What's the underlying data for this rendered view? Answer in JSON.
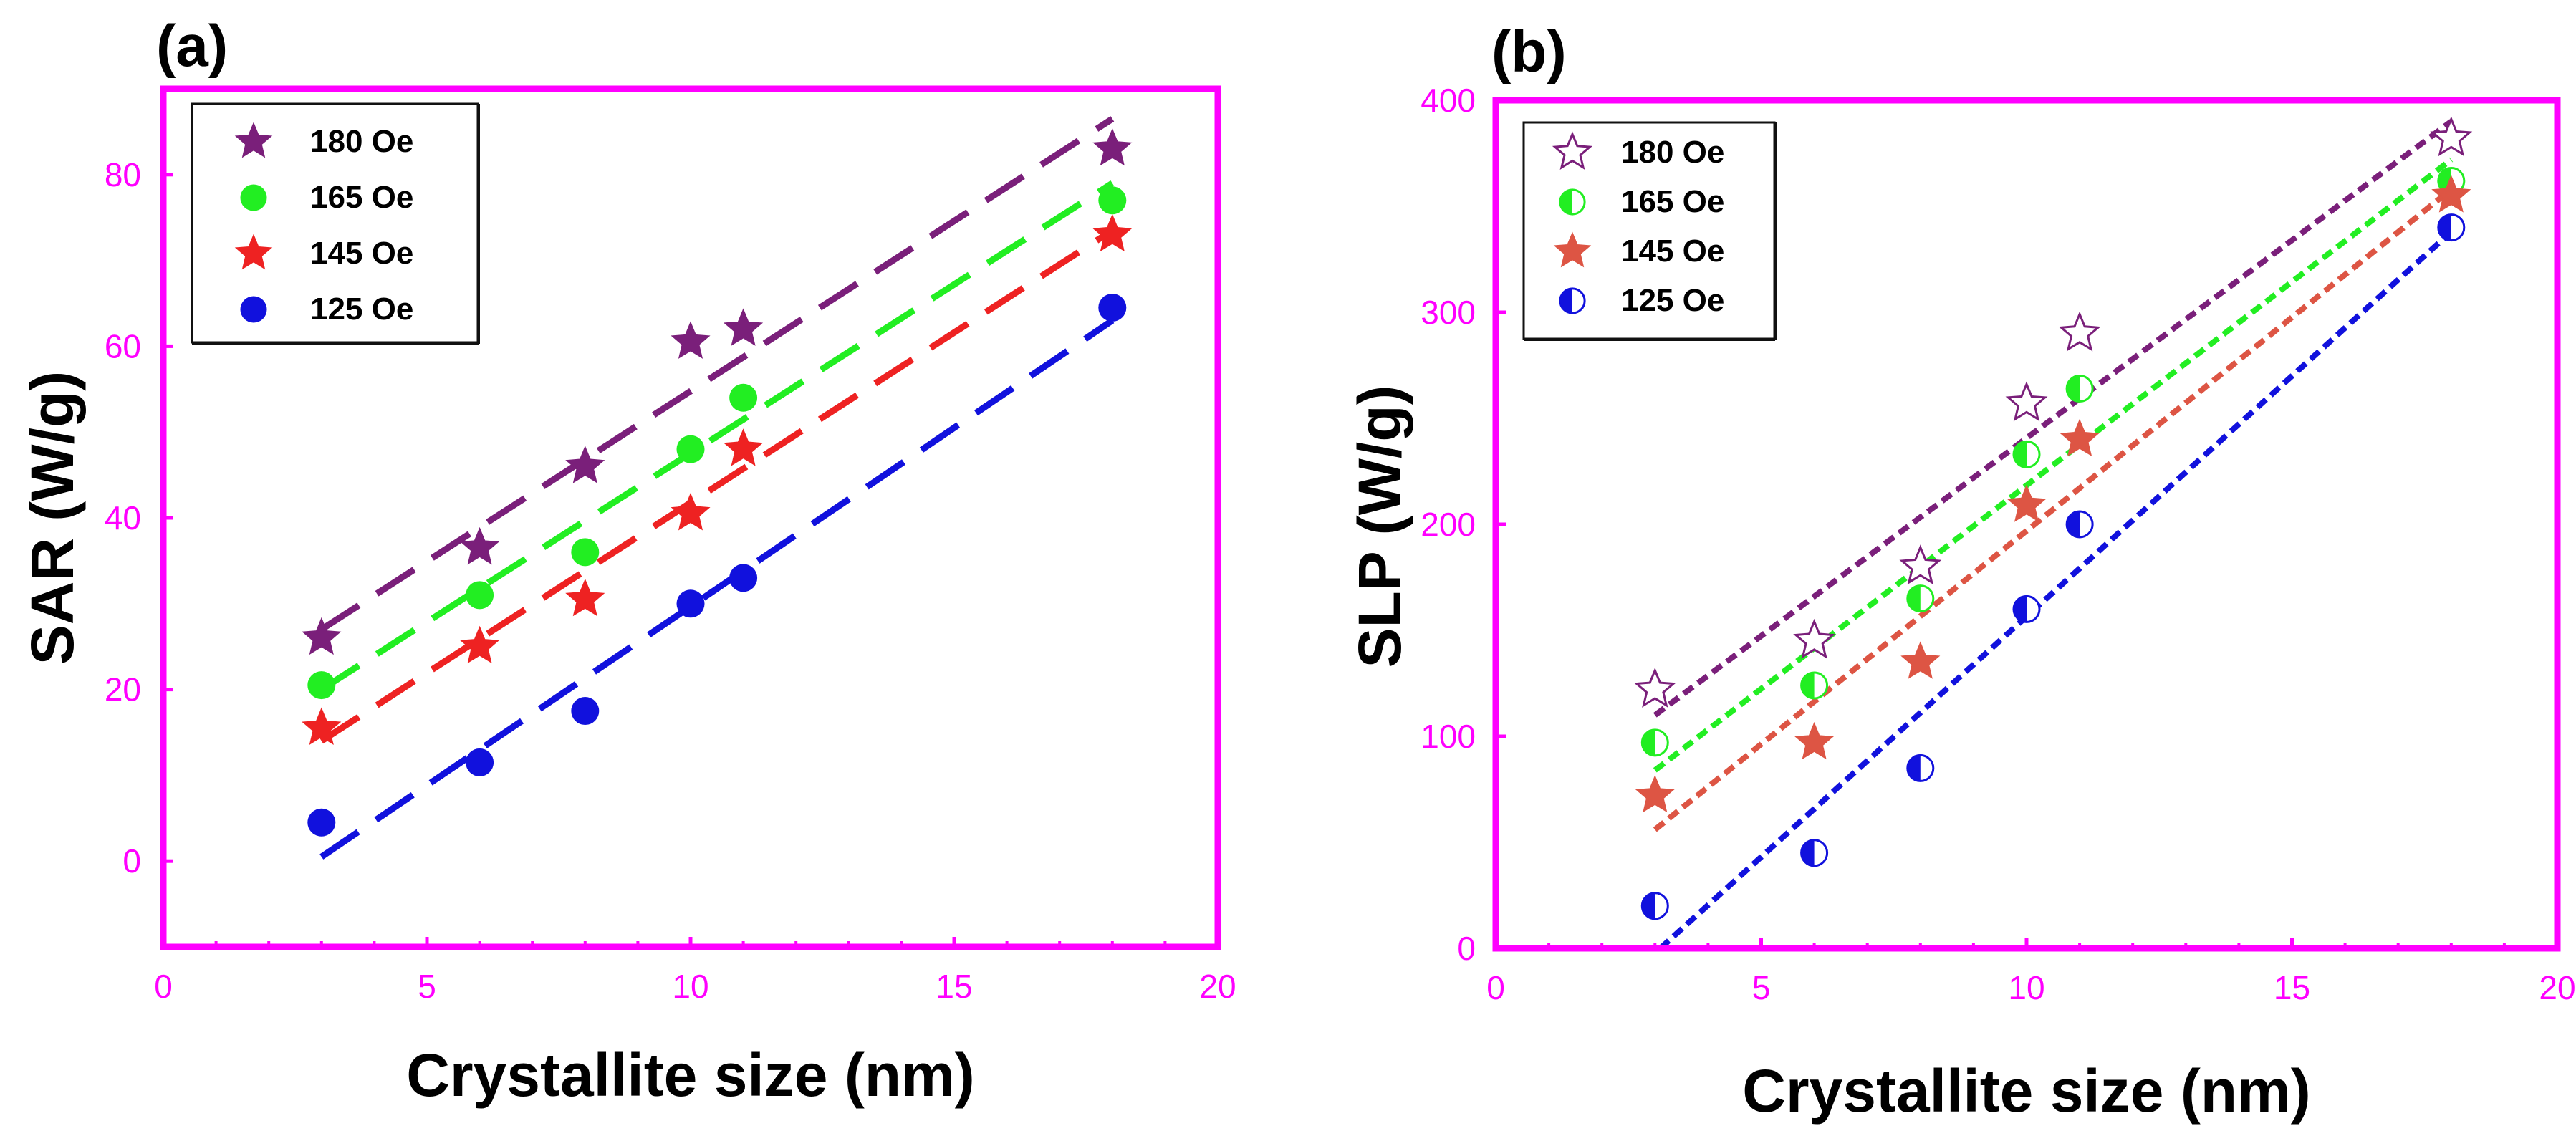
{
  "colors": {
    "axis": "#ff00ff",
    "s180": "#7a1f7a",
    "s165": "#22ee22",
    "s145": "#ee2222",
    "s125": "#1111dd",
    "s145b": "#dd5544"
  },
  "chart_data": [
    {
      "type": "scatter",
      "panel_label": "(a)",
      "xlabel": "Crystallite size (nm)",
      "ylabel": "SAR (W/g)",
      "xlim": [
        0,
        20
      ],
      "ylim": [
        -10,
        90
      ],
      "xticks": [
        0,
        5,
        10,
        15,
        20
      ],
      "yticks": [
        0,
        20,
        40,
        60,
        80
      ],
      "legend_position": "top-left",
      "series": [
        {
          "name": "180 Oe",
          "marker": "star-filled",
          "color_key": "s180",
          "x": [
            3,
            6,
            8,
            10,
            11,
            18
          ],
          "y": [
            26,
            36.5,
            46,
            60.5,
            62,
            83
          ],
          "fit": {
            "x": [
              3,
              18
            ],
            "y": [
              27,
              86.5
            ]
          }
        },
        {
          "name": "165 Oe",
          "marker": "circle-filled",
          "color_key": "s165",
          "x": [
            3,
            6,
            8,
            10,
            11,
            18
          ],
          "y": [
            20.5,
            31,
            36,
            48,
            54,
            77
          ],
          "fit": {
            "x": [
              3,
              18
            ],
            "y": [
              20,
              79
            ]
          }
        },
        {
          "name": "145 Oe",
          "marker": "star-filled",
          "color_key": "s145",
          "x": [
            3,
            6,
            8,
            10,
            11,
            18
          ],
          "y": [
            15.5,
            25,
            30.5,
            40.5,
            48,
            73
          ],
          "fit": {
            "x": [
              3,
              18
            ],
            "y": [
              14,
              73.5
            ]
          }
        },
        {
          "name": "125 Oe",
          "marker": "circle-filled",
          "color_key": "s125",
          "x": [
            3,
            6,
            8,
            10,
            11,
            18
          ],
          "y": [
            4.5,
            11.5,
            17.5,
            30,
            33,
            64.5
          ],
          "fit": {
            "x": [
              3,
              18
            ],
            "y": [
              0.5,
              63
            ]
          }
        }
      ]
    },
    {
      "type": "scatter",
      "panel_label": "(b)",
      "xlabel": "Crystallite size (nm)",
      "ylabel": "SLP (W/g)",
      "xlim": [
        0,
        20
      ],
      "ylim": [
        0,
        400
      ],
      "xticks": [
        0,
        5,
        10,
        15,
        20
      ],
      "yticks": [
        0,
        100,
        200,
        300,
        400
      ],
      "legend_position": "top-left",
      "series": [
        {
          "name": "180 Oe",
          "marker": "star-open",
          "color_key": "s180",
          "x": [
            3,
            6,
            8,
            10,
            11,
            18
          ],
          "y": [
            122,
            145,
            180,
            257,
            290,
            382
          ],
          "fit": {
            "x": [
              3,
              18
            ],
            "y": [
              110,
              390
            ]
          }
        },
        {
          "name": "165 Oe",
          "marker": "circle-half",
          "color_key": "s165",
          "x": [
            3,
            6,
            8,
            10,
            11,
            18
          ],
          "y": [
            97,
            124,
            165,
            233,
            264,
            362
          ],
          "fit": {
            "x": [
              3,
              18
            ],
            "y": [
              84,
              372
            ]
          }
        },
        {
          "name": "145 Oe",
          "marker": "star-filled",
          "color_key": "s145b",
          "x": [
            3,
            6,
            8,
            10,
            11,
            18
          ],
          "y": [
            72,
            97,
            135,
            209,
            240,
            355
          ],
          "fit": {
            "x": [
              3,
              18
            ],
            "y": [
              56,
              358
            ]
          }
        },
        {
          "name": "125 Oe",
          "marker": "circle-half",
          "color_key": "s125",
          "x": [
            3,
            6,
            8,
            10,
            11,
            18
          ],
          "y": [
            20,
            45,
            85,
            160,
            200,
            340
          ],
          "fit": {
            "x": [
              3.1,
              18
            ],
            "y": [
              0,
              338
            ]
          }
        }
      ]
    }
  ]
}
